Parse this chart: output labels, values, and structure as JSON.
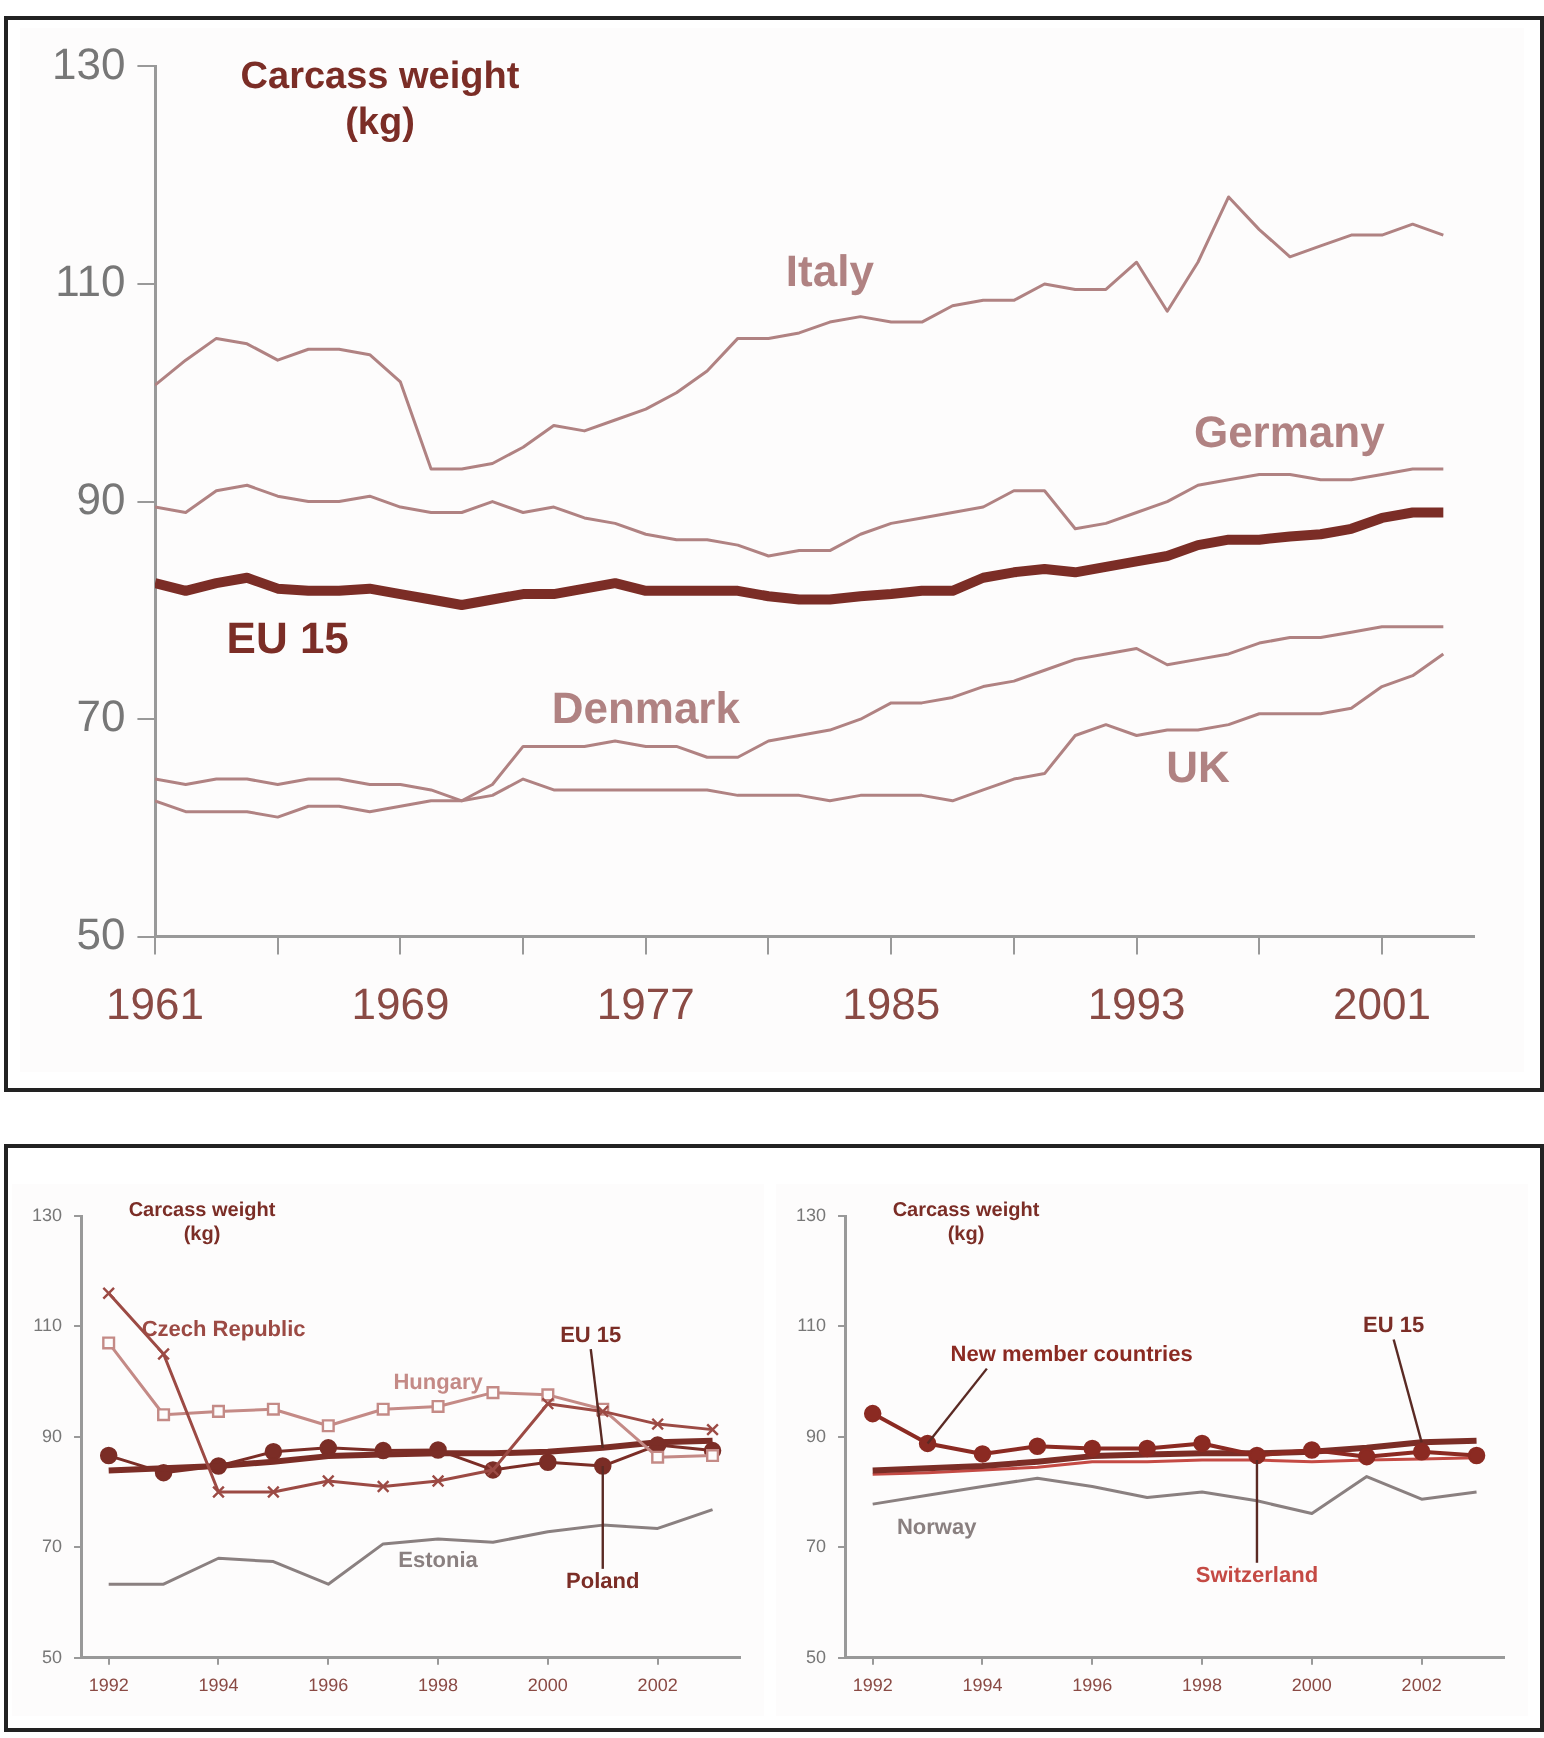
{
  "chart_data": [
    {
      "type": "line",
      "ylabel": "Carcass weight (kg)",
      "x": [
        1961,
        1962,
        1963,
        1964,
        1965,
        1966,
        1967,
        1968,
        1969,
        1970,
        1971,
        1972,
        1973,
        1974,
        1975,
        1976,
        1977,
        1978,
        1979,
        1980,
        1981,
        1982,
        1983,
        1984,
        1985,
        1986,
        1987,
        1988,
        1989,
        1990,
        1991,
        1992,
        1993,
        1994,
        1995,
        1996,
        1997,
        1998,
        1999,
        2000,
        2001,
        2002,
        2003
      ],
      "series": [
        {
          "name": "Italy",
          "color": "#b08282",
          "values": [
            100.7,
            103,
            105,
            104.5,
            103,
            104,
            104,
            103.5,
            101,
            93,
            93,
            93.5,
            95,
            97,
            96.5,
            97.5,
            98.5,
            100,
            102,
            105,
            105,
            105.5,
            106.5,
            107,
            106.5,
            106.5,
            108,
            108.5,
            108.5,
            110,
            109.5,
            109.5,
            112,
            107.5,
            112,
            118,
            115,
            112.5,
            113.5,
            114.5,
            114.5,
            115.5,
            114.5
          ]
        },
        {
          "name": "Germany",
          "color": "#b08282",
          "values": [
            89.5,
            89,
            91,
            91.5,
            90.5,
            90,
            90,
            90.5,
            89.5,
            89,
            89,
            90,
            89,
            89.5,
            88.5,
            88,
            87,
            86.5,
            86.5,
            86,
            85,
            85.5,
            85.5,
            87,
            88,
            88.5,
            89,
            89.5,
            91,
            91,
            87.5,
            88,
            89,
            90,
            91.5,
            92,
            92.5,
            92.5,
            92,
            92,
            92.5,
            93,
            93
          ]
        },
        {
          "name": "EU 15",
          "color": "#7b2d26",
          "values": [
            82.5,
            81.8,
            82.5,
            83,
            82,
            81.8,
            81.8,
            82,
            81.5,
            81,
            80.5,
            81,
            81.5,
            81.5,
            82,
            82.5,
            81.8,
            81.8,
            81.8,
            81.8,
            81.3,
            81,
            81,
            81.3,
            81.5,
            81.8,
            81.8,
            83,
            83.5,
            83.8,
            83.5,
            84,
            84.5,
            85,
            86,
            86.5,
            86.5,
            86.8,
            87,
            87.5,
            88.5,
            89,
            89
          ]
        },
        {
          "name": "Denmark",
          "color": "#b08282",
          "values": [
            64.5,
            64,
            64.5,
            64.5,
            64,
            64.5,
            64.5,
            64,
            64,
            63.5,
            62.5,
            64,
            67.5,
            67.5,
            67.5,
            68,
            67.5,
            67.5,
            66.5,
            66.5,
            68,
            68.5,
            69,
            70,
            71.5,
            71.5,
            72,
            73,
            73.5,
            74.5,
            75.5,
            76,
            76.5,
            75,
            75.5,
            76,
            77,
            77.5,
            77.5,
            78,
            78.5,
            78.5,
            78.5
          ]
        },
        {
          "name": "UK",
          "color": "#b08282",
          "values": [
            62.5,
            61.5,
            61.5,
            61.5,
            61,
            62,
            62,
            61.5,
            62,
            62.5,
            62.5,
            63,
            64.5,
            63.5,
            63.5,
            63.5,
            63.5,
            63.5,
            63.5,
            63,
            63,
            63,
            62.5,
            63,
            63,
            63,
            62.5,
            63.5,
            64.5,
            65,
            68.5,
            69.5,
            68.5,
            69,
            69,
            69.5,
            70.5,
            70.5,
            70.5,
            71,
            73,
            74,
            76
          ]
        }
      ],
      "xlim": [
        1961,
        2004
      ],
      "xticks": [
        1961,
        {
          "value": 1965,
          "label": null
        },
        1969,
        {
          "value": 1973,
          "label": null
        },
        1977,
        {
          "value": 1981,
          "label": null
        },
        1985,
        {
          "value": 1989,
          "label": null
        },
        1993,
        {
          "value": 1997,
          "label": null
        },
        2001
      ],
      "ylim": [
        50,
        130
      ],
      "yticks": [
        50,
        70,
        90,
        110,
        130
      ],
      "grid": false,
      "legend": false,
      "marker": "none"
    },
    {
      "type": "line",
      "ylabel": "Carcass weight (kg)",
      "x": [
        1992,
        1993,
        1994,
        1995,
        1996,
        1997,
        1998,
        1999,
        2000,
        2001,
        2002,
        2003
      ],
      "series": [
        {
          "name": "Czech Republic",
          "color": "#9c4a44",
          "marker": "cross",
          "values": [
            116,
            105,
            80,
            80,
            82,
            81,
            82,
            84,
            96,
            94.6,
            92.3,
            91.3
          ]
        },
        {
          "name": "Hungary",
          "color": "#c48a86",
          "marker": "square",
          "values": [
            107,
            94,
            94.6,
            95,
            92,
            95,
            95.5,
            98,
            97.6,
            95,
            86.3,
            86.6
          ]
        },
        {
          "name": "EU 15",
          "color": "#7b2d26",
          "marker": "none",
          "values": [
            83.9,
            84.3,
            84.7,
            85.5,
            86.5,
            86.8,
            87,
            87,
            87.3,
            88,
            89,
            89.3
          ]
        },
        {
          "name": "Estonia",
          "color": "#8a8080",
          "marker": "none",
          "values": [
            63.3,
            63.3,
            68,
            67.4,
            63.3,
            70.6,
            71.5,
            70.9,
            72.8,
            74,
            73.4,
            76.8
          ]
        },
        {
          "name": "Poland",
          "color": "#7b2d26",
          "marker": "circle",
          "values": [
            86.6,
            83.5,
            84.7,
            87.3,
            88,
            87.5,
            87.6,
            84,
            85.4,
            84.7,
            88.5,
            87.5
          ]
        }
      ],
      "xlim": [
        1991.5,
        2003.5
      ],
      "xticks": [
        1992,
        1994,
        1996,
        1998,
        2000,
        2002
      ],
      "ylim": [
        50,
        130
      ],
      "yticks": [
        50,
        70,
        90,
        110,
        130
      ],
      "grid": false,
      "legend": false
    },
    {
      "type": "line",
      "ylabel": "Carcass weight (kg)",
      "x": [
        1992,
        1993,
        1994,
        1995,
        1996,
        1997,
        1998,
        1999,
        2000,
        2001,
        2002,
        2003
      ],
      "series": [
        {
          "name": "New member countries",
          "color": "#8b2a22",
          "marker": "circle",
          "values": [
            94.2,
            88.8,
            86.9,
            88.3,
            87.9,
            87.9,
            88.8,
            86.6,
            87.6,
            86.4,
            87.3,
            86.6
          ]
        },
        {
          "name": "EU 15",
          "color": "#7b2d26",
          "marker": "none",
          "values": [
            83.9,
            84.3,
            84.7,
            85.5,
            86.5,
            86.8,
            87,
            87,
            87.3,
            88,
            89,
            89.3
          ]
        },
        {
          "name": "Switzerland",
          "color": "#c44a44",
          "marker": "none",
          "values": [
            83.2,
            83.5,
            84,
            84.5,
            85.5,
            85.5,
            85.8,
            85.8,
            85.5,
            85.8,
            86,
            86.2
          ]
        },
        {
          "name": "Norway",
          "color": "#8a8080",
          "marker": "none",
          "values": [
            77.8,
            79.4,
            81,
            82.5,
            81,
            79,
            80,
            78.4,
            76.1,
            82.8,
            78.7,
            80
          ]
        }
      ],
      "xlim": [
        1991.5,
        2003.5
      ],
      "xticks": [
        1992,
        1994,
        1996,
        1998,
        2000,
        2002
      ],
      "ylim": [
        50,
        130
      ],
      "yticks": [
        50,
        70,
        90,
        110,
        130
      ],
      "grid": false,
      "legend": false
    }
  ]
}
